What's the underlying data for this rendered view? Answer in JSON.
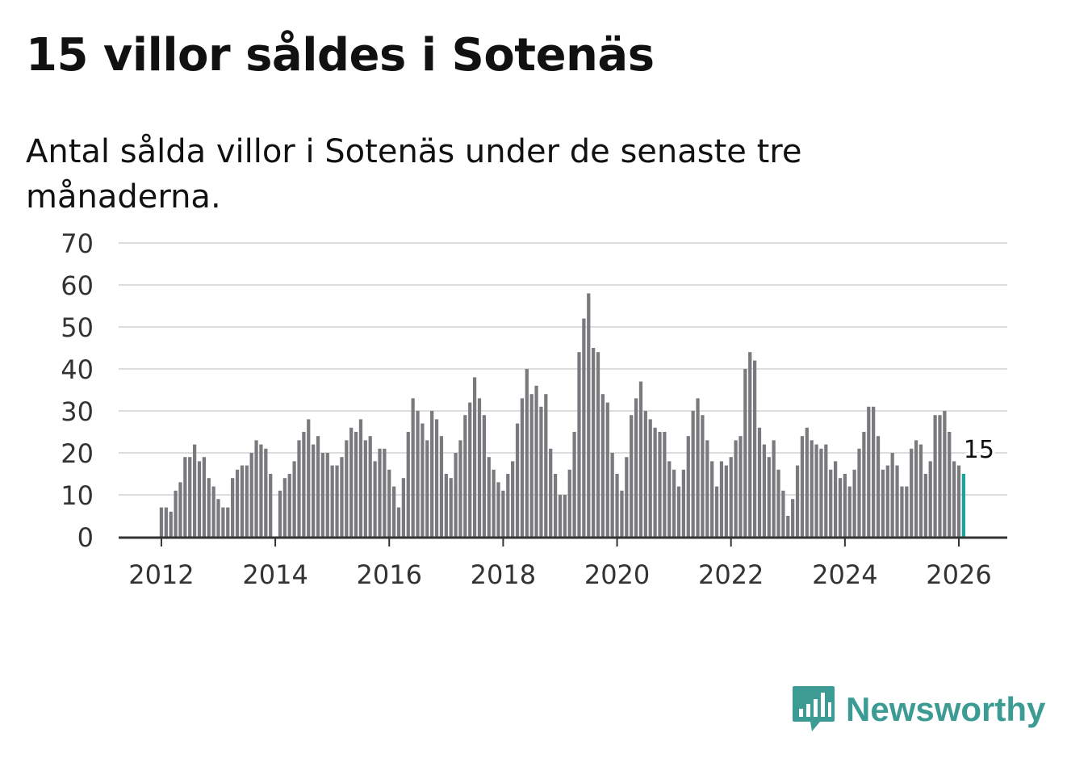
{
  "title": "15 villor såldes i Sotenäs",
  "subtitle": "Antal sålda villor i Sotenäs under de senaste tre månaderna.",
  "brand": {
    "name": "Newsworthy",
    "icon": "newsworthy-logo-icon",
    "color": "#3c9c94"
  },
  "colors": {
    "bar": "#7a797d",
    "highlight": "#1aa39a",
    "grid": "#dddddd",
    "axis": "#333333",
    "text": "#333333"
  },
  "chart_data": {
    "type": "bar",
    "title": "15 villor såldes i Sotenäs",
    "xlabel": "",
    "ylabel": "",
    "ylim": [
      0,
      70
    ],
    "yticks": [
      0,
      10,
      20,
      30,
      40,
      50,
      60,
      70
    ],
    "xlim": [
      2011.25,
      2026.85
    ],
    "xticks": [
      2012,
      2014,
      2016,
      2018,
      2020,
      2022,
      2024,
      2026
    ],
    "start": {
      "year": 2012,
      "month": 1
    },
    "interval": "monthly",
    "grid": true,
    "highlight_label": "15",
    "series": [
      {
        "name": "Sålda villor",
        "values": [
          7,
          7,
          6,
          11,
          13,
          19,
          19,
          22,
          18,
          19,
          14,
          12,
          9,
          7,
          7,
          14,
          16,
          17,
          17,
          20,
          23,
          22,
          21,
          15,
          null,
          11,
          14,
          15,
          18,
          23,
          25,
          28,
          22,
          24,
          20,
          20,
          17,
          17,
          19,
          23,
          26,
          25,
          28,
          23,
          24,
          18,
          21,
          21,
          16,
          12,
          7,
          14,
          25,
          33,
          30,
          27,
          23,
          30,
          28,
          24,
          15,
          14,
          20,
          23,
          29,
          32,
          38,
          33,
          29,
          19,
          16,
          13,
          11,
          15,
          18,
          27,
          33,
          40,
          34,
          36,
          31,
          34,
          21,
          15,
          10,
          10,
          16,
          25,
          44,
          52,
          58,
          45,
          44,
          34,
          32,
          20,
          15,
          11,
          19,
          29,
          33,
          37,
          30,
          28,
          26,
          25,
          25,
          18,
          16,
          12,
          16,
          24,
          30,
          33,
          29,
          23,
          18,
          12,
          18,
          17,
          19,
          23,
          24,
          40,
          44,
          42,
          26,
          22,
          19,
          23,
          16,
          11,
          5,
          9,
          17,
          24,
          26,
          23,
          22,
          21,
          22,
          16,
          18,
          14,
          15,
          12,
          16,
          21,
          25,
          31,
          31,
          24,
          16,
          17,
          20,
          17,
          12,
          12,
          21,
          23,
          22,
          15,
          18,
          29,
          29,
          30,
          25,
          18,
          17,
          15
        ]
      }
    ]
  }
}
